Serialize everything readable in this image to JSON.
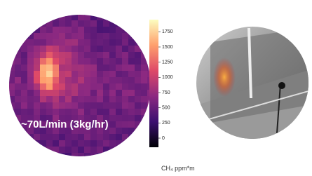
{
  "caption": "~70L/min (3kg/hr)",
  "colorbar": {
    "ticks": [
      0,
      250,
      500,
      750,
      1000,
      1250,
      1500,
      1750
    ],
    "lim": [
      -150,
      1950
    ],
    "label": "CH₄ ppm*m"
  }
}
